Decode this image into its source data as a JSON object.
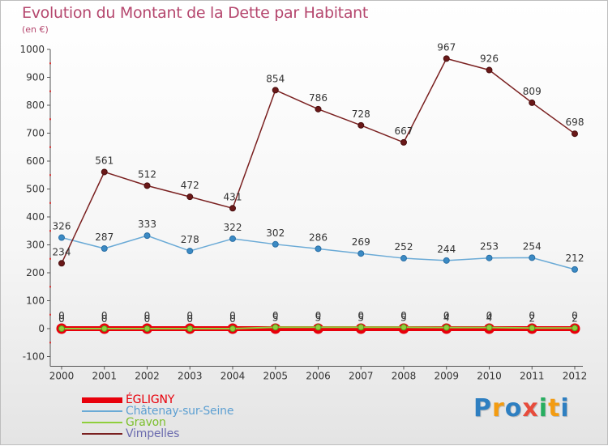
{
  "title": "Evolution du Montant de la Dette par Habitant",
  "subtitle": "(en €)",
  "logo": {
    "text": "Proxiti",
    "letters": [
      {
        "char": "P",
        "color": "#2e7fc1"
      },
      {
        "char": "r",
        "color": "#f39c12"
      },
      {
        "char": "o",
        "color": "#2e7fc1"
      },
      {
        "char": "x",
        "color": "#e74c3c"
      },
      {
        "char": "i",
        "color": "#27ae60"
      },
      {
        "char": "t",
        "color": "#f39c12"
      },
      {
        "char": "i",
        "color": "#2e7fc1"
      }
    ]
  },
  "chart_data": {
    "type": "line",
    "title": "Evolution du Montant de la Dette par Habitant",
    "subtitle": "(en €)",
    "xlabel": "",
    "ylabel": "",
    "x": [
      "2000",
      "2001",
      "2002",
      "2003",
      "2004",
      "2005",
      "2006",
      "2007",
      "2008",
      "2009",
      "2010",
      "2011",
      "2012"
    ],
    "ylim": [
      -100,
      1000
    ],
    "yticks": [
      -100,
      0,
      100,
      200,
      300,
      400,
      500,
      600,
      700,
      800,
      900,
      1000
    ],
    "grid": false,
    "legend_position": "bottom-left",
    "series": [
      {
        "name": "ÉGLIGNY",
        "color": "#e8000b",
        "values": [
          0,
          0,
          0,
          0,
          0,
          0,
          0,
          0,
          0,
          0,
          0,
          0,
          0
        ],
        "labels": [
          "0",
          "0",
          "0",
          "0",
          "0",
          "0",
          "0",
          "0",
          "0",
          "0",
          "0",
          "0",
          "0"
        ]
      },
      {
        "name": "Châtenay-sur-Seine",
        "color": "#6aaad6",
        "values": [
          326,
          287,
          333,
          278,
          322,
          302,
          286,
          269,
          252,
          244,
          253,
          254,
          212
        ],
        "labels": [
          "326",
          "287",
          "333",
          "278",
          "322",
          "302",
          "286",
          "269",
          "252",
          "244",
          "253",
          "254",
          "212"
        ]
      },
      {
        "name": "Gravon",
        "color": "#8fcf3c",
        "values": [
          0,
          0,
          0,
          0,
          0,
          5,
          5,
          5,
          5,
          4,
          4,
          2,
          2
        ],
        "labels": [
          "0",
          "0",
          "0",
          "0",
          "0",
          "5",
          "5",
          "5",
          "5",
          "4",
          "4",
          "2",
          "2"
        ]
      },
      {
        "name": "Vimpelles",
        "color": "#7a2020",
        "values": [
          234,
          561,
          512,
          472,
          431,
          854,
          786,
          728,
          667,
          967,
          926,
          809,
          698
        ],
        "labels": [
          "234",
          "561",
          "512",
          "472",
          "431",
          "854",
          "786",
          "728",
          "667",
          "967",
          "926",
          "809",
          "698"
        ]
      }
    ]
  }
}
